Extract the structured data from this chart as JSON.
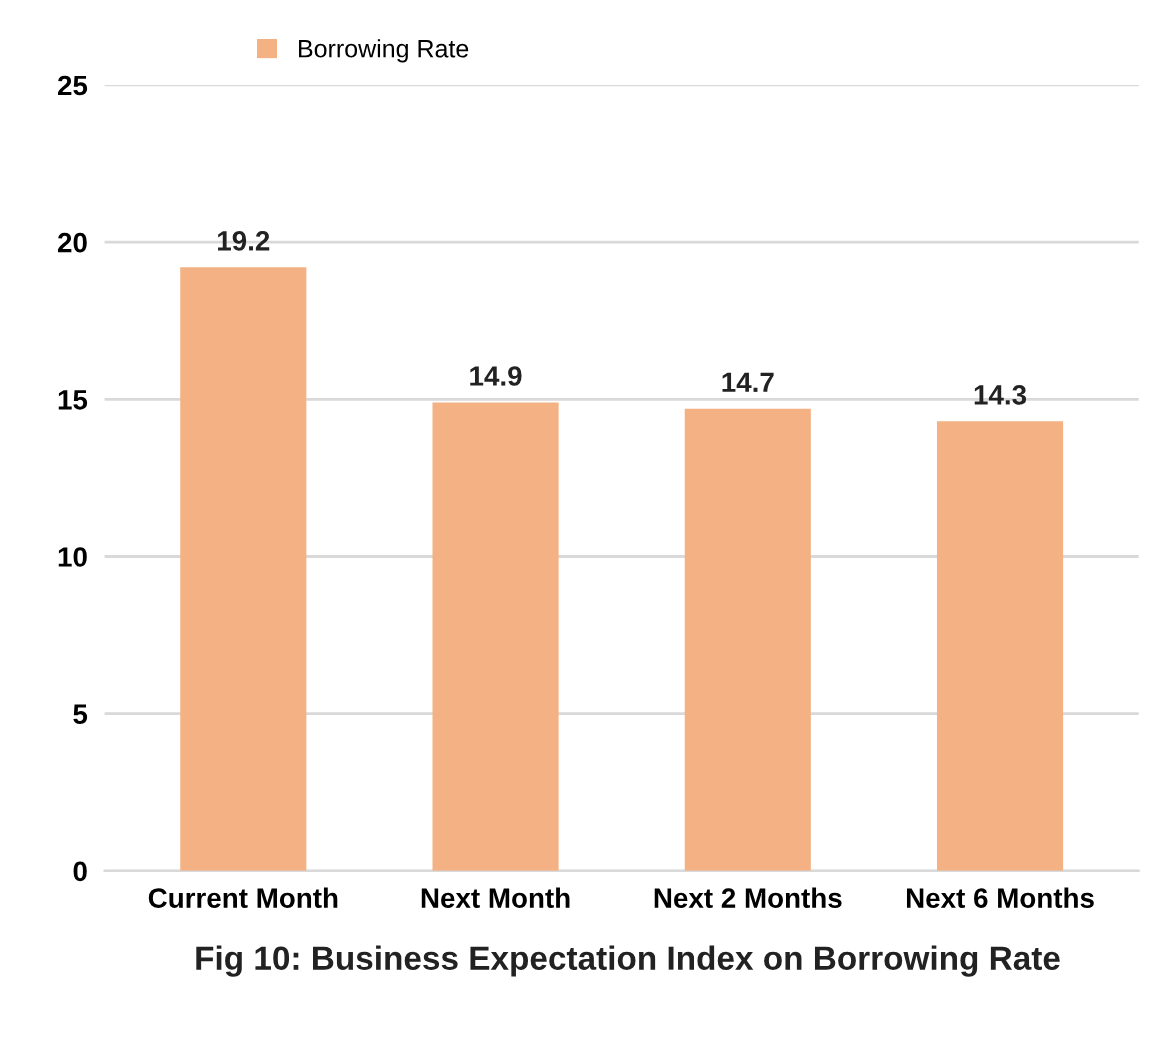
{
  "chart_data": {
    "type": "bar",
    "title": "Fig 10: Business Expectation Index on Borrowing Rate",
    "categories": [
      "Current Month",
      "Next Month",
      "Next 2 Months",
      "Next 6 Months"
    ],
    "series": [
      {
        "name": "Borrowing Rate",
        "color": "#f4b183",
        "values": [
          19.2,
          14.9,
          14.7,
          14.3
        ]
      }
    ],
    "ylim": [
      0,
      25
    ],
    "yticks": [
      0,
      5,
      10,
      15,
      20,
      25
    ],
    "grid": "y",
    "legend": "top",
    "data_labels": true
  }
}
